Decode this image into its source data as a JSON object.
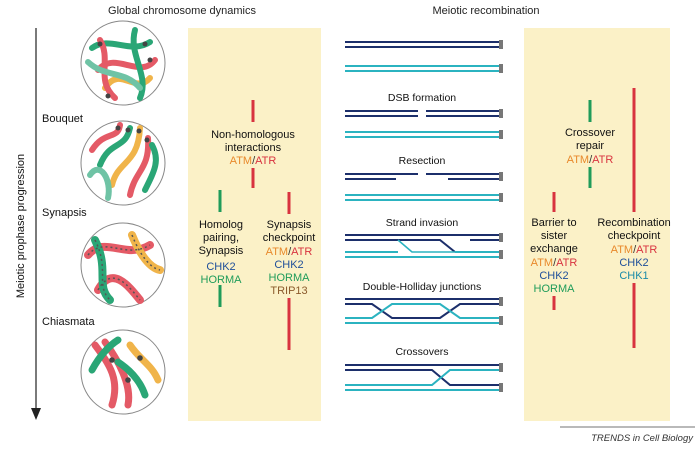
{
  "headers": {
    "left": "Global chromosome dynamics",
    "right": "Meiotic recombination"
  },
  "axis_label": "Meiotic prophase progression",
  "stages": [
    "Bouquet",
    "Synapsis",
    "Chiasmata"
  ],
  "recombination_steps": [
    "DSB formation",
    "Resection",
    "Strand invasion",
    "Double-Holliday junctions",
    "Crossovers"
  ],
  "checkpoints": {
    "nonhomologous": {
      "line1": "Non-homologous",
      "line2": "interactions",
      "atm": "ATM",
      "atr": "ATR"
    },
    "homolog": {
      "line1": "Homolog",
      "line2": "pairing,",
      "line3": "Synapsis",
      "chk2": "CHK2",
      "horma": "HORMA"
    },
    "synapsis_checkpoint": {
      "line1": "Synapsis",
      "line2": "checkpoint",
      "atm": "ATM",
      "atr": "ATR",
      "chk2": "CHK2",
      "horma": "HORMA",
      "trip13": "TRIP13"
    },
    "crossover_repair": {
      "line1": "Crossover",
      "line2": "repair",
      "atm": "ATM",
      "atr": "ATR"
    },
    "barrier": {
      "line1": "Barrier to",
      "line2": "sister",
      "line3": "exchange",
      "atm": "ATM",
      "atr": "ATR",
      "chk2": "CHK2",
      "horma": "HORMA"
    },
    "recombination_checkpoint": {
      "line1": "Recombination",
      "line2": "checkpoint",
      "atm": "ATM",
      "atr": "ATR",
      "chk2": "CHK2",
      "chk1": "CHK1"
    }
  },
  "credit": "TRENDS in Cell Biology",
  "colors": {
    "panel": "#fbf1c7",
    "red": "#d8333f",
    "green": "#1f9c5a",
    "orange": "#e8892b",
    "navy": "#1c2f6b",
    "cyan": "#2bb3c0",
    "chk_blue": "#1f4f9a"
  }
}
